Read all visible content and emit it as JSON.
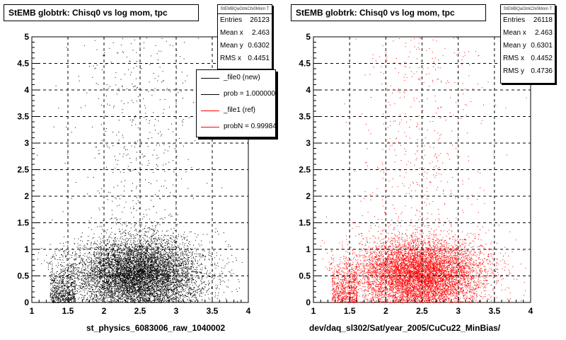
{
  "chart_data": [
    {
      "type": "scatter",
      "title": "StEMB globtrk: Chisq0 vs log mom, tpc",
      "xlabel": "st_physics_6083006_raw_1040002",
      "ylabel": "",
      "xlim": [
        1,
        4
      ],
      "ylim": [
        0,
        5
      ],
      "x_ticks": [
        "1",
        "1.5",
        "2",
        "2.5",
        "3",
        "3.5",
        "4"
      ],
      "y_ticks": [
        "0",
        "0.5",
        "1",
        "1.5",
        "2",
        "2.5",
        "3",
        "3.5",
        "4",
        "4.5",
        "5"
      ],
      "grid": true,
      "marker_color": "#000000",
      "stats": {
        "header": "StEMBQaGtrkChi0Mom T",
        "rows": [
          {
            "label": "Entries",
            "value": "26123"
          },
          {
            "label": "Mean x",
            "value": "2.463"
          },
          {
            "label": "Mean y",
            "value": "0.6302"
          },
          {
            "label": "RMS x",
            "value": "0.4451"
          }
        ]
      },
      "legend": {
        "position": "top-right",
        "entries": [
          {
            "label": "_file0 (new)",
            "color": "#000000"
          },
          {
            "label": "prob = 1.000000",
            "color": "#000000"
          },
          {
            "label": "_file1 (ref)",
            "color": "#ff0000"
          },
          {
            "label": "probN = 0.99984",
            "color": "#ff0000"
          }
        ]
      },
      "distribution": {
        "entries": 26123,
        "mean_x": 2.463,
        "mean_y": 0.6302,
        "rms_x": 0.4451
      }
    },
    {
      "type": "scatter",
      "title": "StEMB globtrk: Chisq0 vs log mom, tpc",
      "xlabel": "dev/daq_sl302/Sat/year_2005/CuCu22_MinBias/",
      "ylabel": "",
      "xlim": [
        1,
        4
      ],
      "ylim": [
        0,
        5
      ],
      "x_ticks": [
        "1",
        "1.5",
        "2",
        "2.5",
        "3",
        "3.5",
        "4"
      ],
      "y_ticks": [
        "0",
        "0.5",
        "1",
        "1.5",
        "2",
        "2.5",
        "3",
        "3.5",
        "4",
        "4.5",
        "5"
      ],
      "grid": true,
      "marker_color": "#ff0000",
      "stats": {
        "header": "StEMBQaGtrkChi0Mom T",
        "rows": [
          {
            "label": "Entries",
            "value": "26118"
          },
          {
            "label": "Mean x",
            "value": "2.463"
          },
          {
            "label": "Mean y",
            "value": "0.6301"
          },
          {
            "label": "RMS x",
            "value": "0.4452"
          },
          {
            "label": "RMS y",
            "value": "0.4736"
          }
        ]
      },
      "distribution": {
        "entries": 26118,
        "mean_x": 2.463,
        "mean_y": 0.6301,
        "rms_x": 0.4452,
        "rms_y": 0.4736
      }
    }
  ]
}
